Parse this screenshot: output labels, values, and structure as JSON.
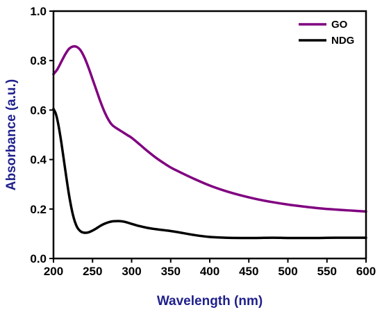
{
  "chart_data": {
    "type": "line",
    "title": "",
    "xlabel": "Wavelength (nm)",
    "ylabel": "Absorbance (a.u.)",
    "xlim": [
      200,
      600
    ],
    "ylim": [
      0.0,
      1.0
    ],
    "x_ticks": [
      "200",
      "250",
      "300",
      "350",
      "400",
      "450",
      "500",
      "550",
      "600"
    ],
    "y_ticks": [
      "0.0",
      "0.2",
      "0.4",
      "0.6",
      "0.8",
      "1.0"
    ],
    "grid": false,
    "legend_position": "top-right",
    "axis_label_color": "#1f1f8c",
    "series": [
      {
        "name": "GO",
        "color": "#800080",
        "x": [
          200,
          205,
          210,
          215,
          220,
          225,
          230,
          235,
          240,
          245,
          250,
          255,
          260,
          265,
          270,
          275,
          280,
          285,
          290,
          295,
          300,
          310,
          320,
          330,
          340,
          350,
          360,
          380,
          400,
          420,
          440,
          460,
          480,
          500,
          520,
          540,
          560,
          580,
          600
        ],
        "y": [
          0.745,
          0.765,
          0.795,
          0.825,
          0.848,
          0.857,
          0.855,
          0.84,
          0.81,
          0.77,
          0.725,
          0.68,
          0.635,
          0.595,
          0.563,
          0.54,
          0.528,
          0.518,
          0.508,
          0.498,
          0.488,
          0.462,
          0.435,
          0.41,
          0.388,
          0.368,
          0.352,
          0.322,
          0.295,
          0.273,
          0.255,
          0.24,
          0.228,
          0.218,
          0.21,
          0.203,
          0.198,
          0.194,
          0.19
        ]
      },
      {
        "name": "NDG",
        "color": "#000000",
        "x": [
          200,
          203,
          206,
          210,
          215,
          220,
          225,
          230,
          235,
          240,
          245,
          250,
          255,
          260,
          265,
          270,
          275,
          280,
          285,
          290,
          295,
          300,
          310,
          320,
          330,
          340,
          350,
          360,
          380,
          400,
          420,
          440,
          460,
          480,
          500,
          520,
          540,
          560,
          580,
          600
        ],
        "y": [
          0.605,
          0.585,
          0.545,
          0.47,
          0.36,
          0.255,
          0.175,
          0.128,
          0.109,
          0.104,
          0.106,
          0.113,
          0.122,
          0.132,
          0.14,
          0.146,
          0.15,
          0.151,
          0.151,
          0.149,
          0.145,
          0.14,
          0.131,
          0.124,
          0.119,
          0.115,
          0.111,
          0.106,
          0.095,
          0.087,
          0.084,
          0.083,
          0.083,
          0.084,
          0.083,
          0.083,
          0.083,
          0.084,
          0.084,
          0.084
        ]
      }
    ]
  }
}
